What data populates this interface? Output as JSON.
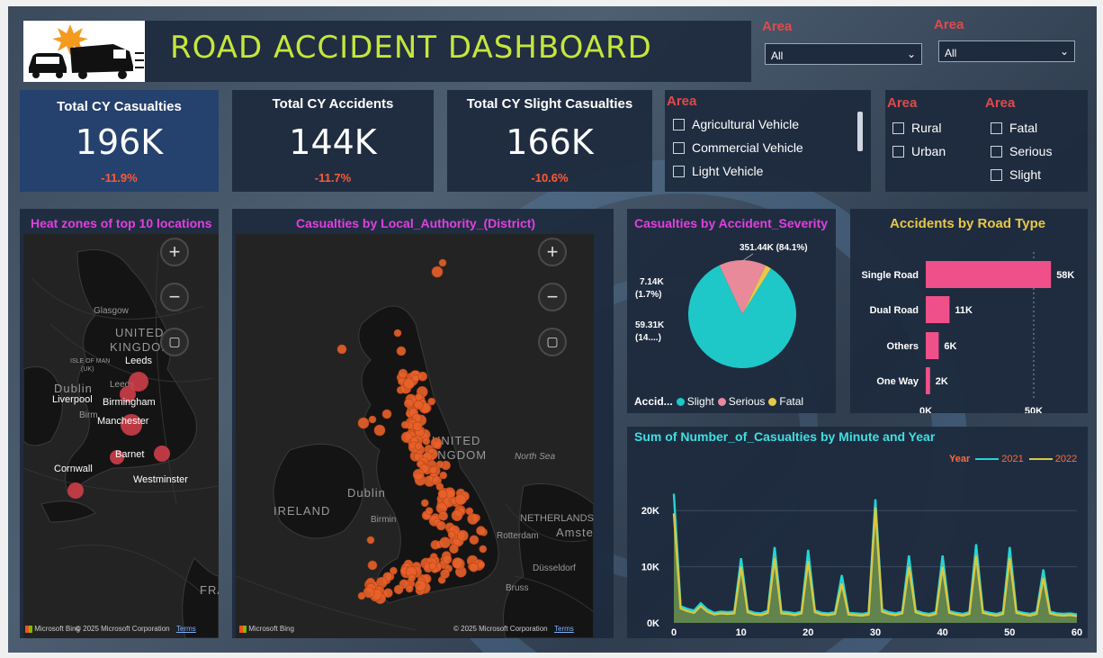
{
  "header": {
    "title": "ROAD ACCIDENT DASHBOARD"
  },
  "top_slicers": [
    {
      "label": "Area",
      "value": "All"
    },
    {
      "label": "Area",
      "value": "All"
    }
  ],
  "kpis": [
    {
      "title": "Total CY Casualties",
      "value": "196K",
      "delta": "-11.9%"
    },
    {
      "title": "Total CY Accidents",
      "value": "144K",
      "delta": "-11.7%"
    },
    {
      "title": "Total CY Slight Casualties",
      "value": "166K",
      "delta": "-10.6%"
    }
  ],
  "vehicle_slicer": {
    "label": "Area",
    "items": [
      "Agricultural Vehicle",
      "Commercial Vehicle",
      "Light Vehicle"
    ]
  },
  "area_slicer": {
    "label": "Area",
    "items": [
      "Rural",
      "Urban"
    ]
  },
  "severity_slicer": {
    "label": "Area",
    "items": [
      "Fatal",
      "Serious",
      "Slight"
    ]
  },
  "heat_map": {
    "title": "Heat zones of top 10 locations",
    "geo_labels": [
      "Glasgow",
      "UNITED",
      "KINGDOM",
      "ISLE OF MAN",
      "(UK)",
      "Dublin",
      "Birm",
      "Leeds",
      "FRA"
    ],
    "cities": [
      "Leeds",
      "Liverpool",
      "Birmingham",
      "Manchester",
      "Barnet",
      "Cornwall",
      "Westminster"
    ],
    "attribution": "© 2025 Microsoft Corporation",
    "brand": "Microsoft Bing",
    "terms": "Terms"
  },
  "district_map": {
    "title": "Casualties by Local_Authority_(District)",
    "geo_labels": [
      "UNITED",
      "KINGDOM",
      "North Sea",
      "Dublin",
      "IRELAND",
      "Birmin",
      "NETHERLANDS",
      "Rotterdam",
      "Amste",
      "Düsseldorf",
      "Bruss"
    ],
    "attribution": "© 2025 Microsoft Corporation",
    "brand": "Microsoft Bing",
    "terms": "Terms"
  },
  "map_controls": {
    "zoom_in": "+",
    "zoom_out": "−"
  },
  "severity_pie": {
    "title": "Casualties by Accident_Severity",
    "legend_title": "Accid...",
    "labels": {
      "slight": "351.44K (84.1%)",
      "fatal_1": "7.14K",
      "fatal_2": "(1.7%)",
      "serious_1": "59.31K",
      "serious_2": "(14....)"
    }
  },
  "road_type": {
    "title": "Accidents by Road Type",
    "x_ticks": [
      "0K",
      "50K"
    ]
  },
  "line_chart": {
    "title": "Sum of Number_of_Casualties by Minute and Year",
    "legend_title": "Year",
    "y_ticks": [
      "20K",
      "10K",
      "0K"
    ],
    "x_ticks": [
      "0",
      "10",
      "20",
      "30",
      "40",
      "50",
      "60"
    ]
  },
  "colors": {
    "slight": "#1ec8c8",
    "serious": "#e88a9a",
    "fatal": "#e8c84a",
    "bar": "#f0508a",
    "line_2021": "#25d4d6",
    "line_2022": "#d9c740",
    "map_dot": "#e8622a",
    "heat_dot": "#d8404a"
  },
  "chart_data": [
    {
      "type": "pie",
      "title": "Casualties by Accident_Severity",
      "categories": [
        "Slight",
        "Serious",
        "Fatal"
      ],
      "values": [
        351440,
        59310,
        7140
      ],
      "percent": [
        84.1,
        14.2,
        1.7
      ],
      "legend": "bottom"
    },
    {
      "type": "bar",
      "orientation": "horizontal",
      "title": "Accidents by Road Type",
      "categories": [
        "Single Road",
        "Dual Road",
        "Others",
        "One Way"
      ],
      "values": [
        58000,
        11000,
        6000,
        2000
      ],
      "value_labels": [
        "58K",
        "11K",
        "6K",
        "2K"
      ],
      "xlim": [
        0,
        65000
      ]
    },
    {
      "type": "line",
      "title": "Sum of Number_of_Casualties by Minute and Year",
      "x": [
        0,
        1,
        2,
        3,
        4,
        5,
        6,
        7,
        8,
        9,
        10,
        11,
        12,
        13,
        14,
        15,
        16,
        17,
        18,
        19,
        20,
        21,
        22,
        23,
        24,
        25,
        26,
        27,
        28,
        29,
        30,
        31,
        32,
        33,
        34,
        35,
        36,
        37,
        38,
        39,
        40,
        41,
        42,
        43,
        44,
        45,
        46,
        47,
        48,
        49,
        50,
        51,
        52,
        53,
        54,
        55,
        56,
        57,
        58,
        59,
        60
      ],
      "ylim": [
        0,
        25000
      ],
      "series": [
        {
          "name": "2021",
          "values": [
            23000,
            3000,
            2500,
            2200,
            3500,
            2400,
            1800,
            2000,
            1900,
            2000,
            11500,
            2200,
            1800,
            1700,
            2200,
            13500,
            2000,
            1900,
            1700,
            2000,
            13000,
            2200,
            1800,
            1700,
            1900,
            8500,
            1800,
            1700,
            1600,
            1800,
            22000,
            2400,
            1900,
            1700,
            2000,
            12000,
            2200,
            1800,
            1600,
            1900,
            12000,
            2100,
            1800,
            1600,
            1900,
            14000,
            2100,
            1800,
            1600,
            1900,
            13500,
            2100,
            1800,
            1600,
            1900,
            9500,
            2000,
            1700,
            1600,
            1700,
            1500
          ]
        },
        {
          "name": "2022",
          "values": [
            19500,
            2600,
            2100,
            1800,
            3000,
            2000,
            1500,
            1700,
            1600,
            1700,
            10000,
            1900,
            1500,
            1400,
            1800,
            11500,
            1700,
            1600,
            1400,
            1700,
            11000,
            1900,
            1500,
            1400,
            1600,
            7000,
            1500,
            1400,
            1300,
            1500,
            20500,
            2000,
            1600,
            1400,
            1700,
            10000,
            1900,
            1500,
            1300,
            1600,
            10000,
            1800,
            1500,
            1300,
            1600,
            12000,
            1800,
            1500,
            1300,
            1600,
            11500,
            1800,
            1500,
            1300,
            1600,
            8000,
            1700,
            1400,
            1300,
            1400,
            1200
          ]
        }
      ],
      "legend": "top-right"
    }
  ]
}
